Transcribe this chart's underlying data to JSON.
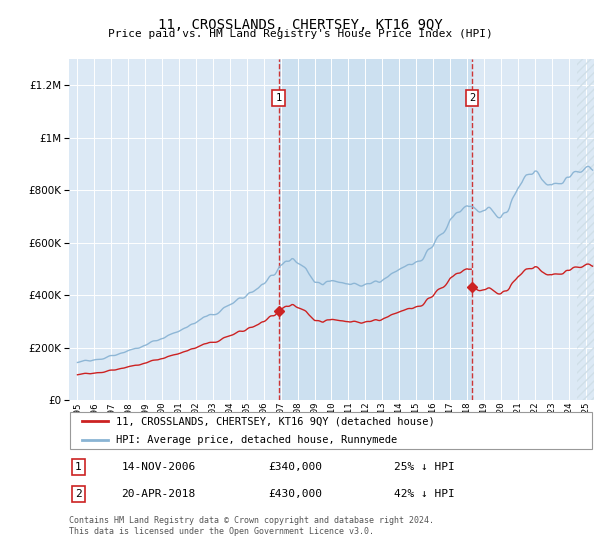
{
  "title": "11, CROSSLANDS, CHERTSEY, KT16 9QY",
  "subtitle": "Price paid vs. HM Land Registry's House Price Index (HPI)",
  "hpi_label": "HPI: Average price, detached house, Runnymede",
  "property_label": "11, CROSSLANDS, CHERTSEY, KT16 9QY (detached house)",
  "sale1_date": "14-NOV-2006",
  "sale1_price": "£340,000",
  "sale1_pct": "25% ↓ HPI",
  "sale2_date": "20-APR-2018",
  "sale2_price": "£430,000",
  "sale2_pct": "42% ↓ HPI",
  "footer": "Contains HM Land Registry data © Crown copyright and database right 2024.\nThis data is licensed under the Open Government Licence v3.0.",
  "hpi_color": "#8ab4d4",
  "property_color": "#cc2222",
  "sale1_year": 2006,
  "sale1_month": 11,
  "sale2_year": 2018,
  "sale2_month": 4,
  "sale1_price_val": 340000,
  "sale2_price_val": 430000,
  "ylim_min": 0,
  "ylim_max": 1300000,
  "xlim_min": 1994.5,
  "xlim_max": 2025.5,
  "bg_color": "#dce9f5",
  "highlight_color": "#cce0f0",
  "grid_color": "#ffffff",
  "hatch_bg": "#d0dfe8"
}
